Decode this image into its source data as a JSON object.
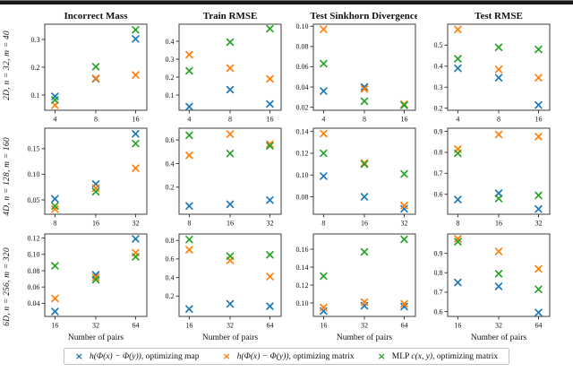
{
  "page": {
    "background": "#ffffff",
    "top_bar_color": "#191919"
  },
  "rows": [
    {
      "label": "2D, n = 32, m = 40"
    },
    {
      "label": "4D, n = 128, m = 160"
    },
    {
      "label": "6D, n = 256, m = 320"
    }
  ],
  "column_titles": [
    "Incorrect Mass",
    "Train RMSE",
    "Test Sinkhorn Divergence",
    "Test RMSE"
  ],
  "xaxis_label": "Number of pairs",
  "legend": {
    "items": [
      {
        "marker": "×",
        "color": "#1f77b4",
        "pre": "",
        "math": "h(Φ(x) − Φ(y))",
        "rest": ", optimizing map"
      },
      {
        "marker": "×",
        "color": "#ff7f0e",
        "pre": "",
        "math": "h(Φ(x) − Φ(y))",
        "rest": ", optimizing matrix"
      },
      {
        "marker": "×",
        "color": "#2ca02c",
        "pre": "MLP ",
        "math": "c(x, y)",
        "rest": ", optimizing matrix"
      }
    ]
  },
  "chart_data": [
    {
      "type": "scatter",
      "row": 0,
      "col": 0,
      "title": "Incorrect Mass",
      "row_label": "2D, n = 32, m = 40",
      "xlabel": "",
      "x_categories": [
        "4",
        "8",
        "16"
      ],
      "ylim": [
        0.045,
        0.355
      ],
      "ytick_values": [
        0.1,
        0.2,
        0.3
      ],
      "ytick_labels": [
        "0.1",
        "0.2",
        "0.3"
      ],
      "series": [
        {
          "name": "h(Φ(x) − Φ(y)), optimizing map",
          "color": "#1f77b4",
          "marker": "x",
          "values": [
            0.095,
            0.158,
            0.302
          ]
        },
        {
          "name": "h(Φ(x) − Φ(y)), optimizing matrix",
          "color": "#ff7f0e",
          "marker": "x",
          "values": [
            0.063,
            0.16,
            0.172
          ]
        },
        {
          "name": "MLP c(x, y), optimizing matrix",
          "color": "#2ca02c",
          "marker": "x",
          "values": [
            0.082,
            0.202,
            0.335
          ]
        }
      ]
    },
    {
      "type": "scatter",
      "row": 0,
      "col": 1,
      "title": "Train RMSE",
      "row_label": "2D, n = 32, m = 40",
      "xlabel": "",
      "x_categories": [
        "4",
        "8",
        "16"
      ],
      "ylim": [
        0.015,
        0.495
      ],
      "ytick_values": [
        0.1,
        0.2,
        0.3,
        0.4
      ],
      "ytick_labels": [
        "0.1",
        "0.2",
        "0.3",
        "0.4"
      ],
      "series": [
        {
          "name": "h(Φ(x) − Φ(y)), optimizing map",
          "color": "#1f77b4",
          "marker": "x",
          "values": [
            0.035,
            0.13,
            0.05
          ]
        },
        {
          "name": "h(Φ(x) − Φ(y)), optimizing matrix",
          "color": "#ff7f0e",
          "marker": "x",
          "values": [
            0.325,
            0.25,
            0.19
          ]
        },
        {
          "name": "MLP c(x, y), optimizing matrix",
          "color": "#2ca02c",
          "marker": "x",
          "values": [
            0.235,
            0.395,
            0.47
          ]
        }
      ]
    },
    {
      "type": "scatter",
      "row": 0,
      "col": 2,
      "title": "Test Sinkhorn Divergence",
      "row_label": "2D, n = 32, m = 40",
      "xlabel": "",
      "x_categories": [
        "4",
        "8",
        "16"
      ],
      "ylim": [
        0.017,
        0.102
      ],
      "ytick_values": [
        0.02,
        0.04,
        0.06,
        0.08,
        0.1
      ],
      "ytick_labels": [
        "0.02",
        "0.04",
        "0.06",
        "0.08",
        "0.10"
      ],
      "series": [
        {
          "name": "h(Φ(x) − Φ(y)), optimizing map",
          "color": "#1f77b4",
          "marker": "x",
          "values": [
            0.036,
            0.04,
            0.022
          ]
        },
        {
          "name": "h(Φ(x) − Φ(y)), optimizing matrix",
          "color": "#ff7f0e",
          "marker": "x",
          "values": [
            0.097,
            0.038,
            0.023
          ]
        },
        {
          "name": "MLP c(x, y), optimizing matrix",
          "color": "#2ca02c",
          "marker": "x",
          "values": [
            0.063,
            0.026,
            0.022
          ]
        }
      ]
    },
    {
      "type": "scatter",
      "row": 0,
      "col": 3,
      "title": "Test RMSE",
      "row_label": "2D, n = 32, m = 40",
      "xlabel": "",
      "x_categories": [
        "4",
        "8",
        "16"
      ],
      "ylim": [
        0.19,
        0.6
      ],
      "ytick_values": [
        0.2,
        0.3,
        0.4,
        0.5
      ],
      "ytick_labels": [
        "0.2",
        "0.3",
        "0.4",
        "0.5"
      ],
      "series": [
        {
          "name": "h(Φ(x) − Φ(y)), optimizing map",
          "color": "#1f77b4",
          "marker": "x",
          "values": [
            0.39,
            0.345,
            0.215
          ]
        },
        {
          "name": "h(Φ(x) − Φ(y)), optimizing matrix",
          "color": "#ff7f0e",
          "marker": "x",
          "values": [
            0.575,
            0.385,
            0.345
          ]
        },
        {
          "name": "MLP c(x, y), optimizing matrix",
          "color": "#2ca02c",
          "marker": "x",
          "values": [
            0.435,
            0.49,
            0.48
          ]
        }
      ]
    },
    {
      "type": "scatter",
      "row": 1,
      "col": 0,
      "title": "",
      "row_label": "4D, n = 128, m = 160",
      "xlabel": "",
      "x_categories": [
        "8",
        "16",
        "32"
      ],
      "ylim": [
        0.022,
        0.19
      ],
      "ytick_values": [
        0.05,
        0.1,
        0.15
      ],
      "ytick_labels": [
        "0.05",
        "0.10",
        "0.15"
      ],
      "series": [
        {
          "name": "h(Φ(x) − Φ(y)), optimizing map",
          "color": "#1f77b4",
          "marker": "x",
          "values": [
            0.052,
            0.081,
            0.179
          ]
        },
        {
          "name": "h(Φ(x) − Φ(y)), optimizing matrix",
          "color": "#ff7f0e",
          "marker": "x",
          "values": [
            0.032,
            0.073,
            0.112
          ]
        },
        {
          "name": "MLP c(x, y), optimizing matrix",
          "color": "#2ca02c",
          "marker": "x",
          "values": [
            0.038,
            0.066,
            0.16
          ]
        }
      ]
    },
    {
      "type": "scatter",
      "row": 1,
      "col": 1,
      "title": "",
      "row_label": "4D, n = 128, m = 160",
      "xlabel": "",
      "x_categories": [
        "8",
        "16",
        "32"
      ],
      "ylim": [
        -0.03,
        0.7
      ],
      "ytick_values": [
        0.2,
        0.4,
        0.6
      ],
      "ytick_labels": [
        "0.2",
        "0.4",
        "0.6"
      ],
      "series": [
        {
          "name": "h(Φ(x) − Φ(y)), optimizing map",
          "color": "#1f77b4",
          "marker": "x",
          "values": [
            0.04,
            0.055,
            0.09
          ]
        },
        {
          "name": "h(Φ(x) − Φ(y)), optimizing matrix",
          "color": "#ff7f0e",
          "marker": "x",
          "values": [
            0.47,
            0.65,
            0.565
          ]
        },
        {
          "name": "MLP c(x, y), optimizing matrix",
          "color": "#2ca02c",
          "marker": "x",
          "values": [
            0.64,
            0.485,
            0.55
          ]
        }
      ]
    },
    {
      "type": "scatter",
      "row": 1,
      "col": 2,
      "title": "",
      "row_label": "4D, n = 128, m = 160",
      "xlabel": "",
      "x_categories": [
        "8",
        "16",
        "32"
      ],
      "ylim": [
        0.064,
        0.143
      ],
      "ytick_values": [
        0.08,
        0.1,
        0.12,
        0.14
      ],
      "ytick_labels": [
        "0.08",
        "0.10",
        "0.12",
        "0.14"
      ],
      "series": [
        {
          "name": "h(Φ(x) − Φ(y)), optimizing map",
          "color": "#1f77b4",
          "marker": "x",
          "values": [
            0.099,
            0.08,
            0.069
          ]
        },
        {
          "name": "h(Φ(x) − Φ(y)), optimizing matrix",
          "color": "#ff7f0e",
          "marker": "x",
          "values": [
            0.138,
            0.111,
            0.072
          ]
        },
        {
          "name": "MLP c(x, y), optimizing matrix",
          "color": "#2ca02c",
          "marker": "x",
          "values": [
            0.12,
            0.11,
            0.101
          ]
        }
      ]
    },
    {
      "type": "scatter",
      "row": 1,
      "col": 3,
      "title": "",
      "row_label": "4D, n = 128, m = 160",
      "xlabel": "",
      "x_categories": [
        "8",
        "16",
        "32"
      ],
      "ylim": [
        0.505,
        0.915
      ],
      "ytick_values": [
        0.6,
        0.7,
        0.8,
        0.9
      ],
      "ytick_labels": [
        "0.6",
        "0.7",
        "0.8",
        "0.9"
      ],
      "series": [
        {
          "name": "h(Φ(x) − Φ(y)), optimizing map",
          "color": "#1f77b4",
          "marker": "x",
          "values": [
            0.575,
            0.605,
            0.53
          ]
        },
        {
          "name": "h(Φ(x) − Φ(y)), optimizing matrix",
          "color": "#ff7f0e",
          "marker": "x",
          "values": [
            0.815,
            0.885,
            0.875
          ]
        },
        {
          "name": "MLP c(x, y), optimizing matrix",
          "color": "#2ca02c",
          "marker": "x",
          "values": [
            0.795,
            0.58,
            0.595
          ]
        }
      ]
    },
    {
      "type": "scatter",
      "row": 2,
      "col": 0,
      "title": "",
      "row_label": "6D, n = 256, m = 320",
      "xlabel": "Number of pairs",
      "x_categories": [
        "16",
        "32",
        "64"
      ],
      "ylim": [
        0.024,
        0.125
      ],
      "ytick_values": [
        0.04,
        0.06,
        0.08,
        0.1,
        0.12
      ],
      "ytick_labels": [
        "0.04",
        "0.06",
        "0.08",
        "0.10",
        "0.12"
      ],
      "series": [
        {
          "name": "h(Φ(x) − Φ(y)), optimizing map",
          "color": "#1f77b4",
          "marker": "x",
          "values": [
            0.03,
            0.075,
            0.119
          ]
        },
        {
          "name": "h(Φ(x) − Φ(y)), optimizing matrix",
          "color": "#ff7f0e",
          "marker": "x",
          "values": [
            0.046,
            0.072,
            0.102
          ]
        },
        {
          "name": "MLP c(x, y), optimizing matrix",
          "color": "#2ca02c",
          "marker": "x",
          "values": [
            0.086,
            0.069,
            0.097
          ]
        }
      ]
    },
    {
      "type": "scatter",
      "row": 2,
      "col": 1,
      "title": "",
      "row_label": "6D, n = 256, m = 320",
      "xlabel": "Number of pairs",
      "x_categories": [
        "16",
        "32",
        "64"
      ],
      "ylim": [
        -0.02,
        0.87
      ],
      "ytick_values": [
        0.2,
        0.4,
        0.6,
        0.8
      ],
      "ytick_labels": [
        "0.2",
        "0.4",
        "0.6",
        "0.8"
      ],
      "series": [
        {
          "name": "h(Φ(x) − Φ(y)), optimizing map",
          "color": "#1f77b4",
          "marker": "x",
          "values": [
            0.06,
            0.115,
            0.09
          ]
        },
        {
          "name": "h(Φ(x) − Φ(y)), optimizing matrix",
          "color": "#ff7f0e",
          "marker": "x",
          "values": [
            0.7,
            0.585,
            0.41
          ]
        },
        {
          "name": "MLP c(x, y), optimizing matrix",
          "color": "#2ca02c",
          "marker": "x",
          "values": [
            0.81,
            0.63,
            0.645
          ]
        }
      ]
    },
    {
      "type": "scatter",
      "row": 2,
      "col": 2,
      "title": "",
      "row_label": "6D, n = 256, m = 320",
      "xlabel": "Number of pairs",
      "x_categories": [
        "16",
        "32",
        "64"
      ],
      "ylim": [
        0.085,
        0.177
      ],
      "ytick_values": [
        0.1,
        0.12,
        0.14,
        0.16
      ],
      "ytick_labels": [
        "0.10",
        "0.12",
        "0.14",
        "0.16"
      ],
      "series": [
        {
          "name": "h(Φ(x) − Φ(y)), optimizing map",
          "color": "#1f77b4",
          "marker": "x",
          "values": [
            0.091,
            0.097,
            0.096
          ]
        },
        {
          "name": "h(Φ(x) − Φ(y)), optimizing matrix",
          "color": "#ff7f0e",
          "marker": "x",
          "values": [
            0.095,
            0.101,
            0.099
          ]
        },
        {
          "name": "MLP c(x, y), optimizing matrix",
          "color": "#2ca02c",
          "marker": "x",
          "values": [
            0.13,
            0.157,
            0.171
          ]
        }
      ]
    },
    {
      "type": "scatter",
      "row": 2,
      "col": 3,
      "title": "",
      "row_label": "6D, n = 256, m = 320",
      "xlabel": "Number of pairs",
      "x_categories": [
        "16",
        "32",
        "64"
      ],
      "ylim": [
        0.575,
        1.0
      ],
      "ytick_values": [
        0.6,
        0.7,
        0.8,
        0.9
      ],
      "ytick_labels": [
        "0.6",
        "0.7",
        "0.8",
        "0.9"
      ],
      "series": [
        {
          "name": "h(Φ(x) − Φ(y)), optimizing map",
          "color": "#1f77b4",
          "marker": "x",
          "values": [
            0.75,
            0.73,
            0.595
          ]
        },
        {
          "name": "h(Φ(x) − Φ(y)), optimizing matrix",
          "color": "#ff7f0e",
          "marker": "x",
          "values": [
            0.975,
            0.91,
            0.82
          ]
        },
        {
          "name": "MLP c(x, y), optimizing matrix",
          "color": "#2ca02c",
          "marker": "x",
          "values": [
            0.96,
            0.795,
            0.715
          ]
        }
      ]
    }
  ]
}
